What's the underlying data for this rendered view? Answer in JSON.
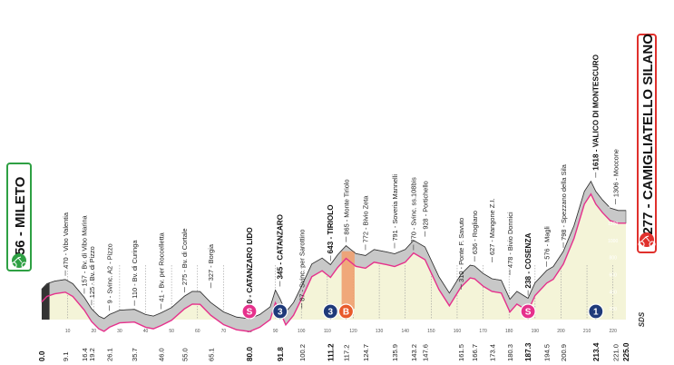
{
  "start": {
    "name": "MILETO",
    "altitude": "356",
    "color": "#2ea043"
  },
  "finish": {
    "name": "CAMIGLIATELLO SILANO",
    "altitude": "1277",
    "color": "#e0302c"
  },
  "logo": "SDS",
  "colors": {
    "pink": "#e6318c",
    "navy": "#1f3a7a",
    "orange": "#f0a070",
    "profile_fill": "#c8c8c8",
    "ground": "#f4f4d8"
  },
  "chart_data": {
    "type": "area",
    "x_unit": "km",
    "y_unit": "m",
    "xlim": [
      0,
      225
    ],
    "ylim": [
      0,
      1700
    ],
    "altitude_ticks": [
      "1400",
      "1200",
      "1000",
      "800",
      "600",
      "400",
      "200"
    ],
    "axis_ticks": [
      "10",
      "20",
      "30",
      "40",
      "50",
      "60",
      "70",
      "80",
      "90",
      "100",
      "110",
      "120",
      "130",
      "140",
      "150",
      "160",
      "170",
      "180",
      "190",
      "200",
      "210",
      "220"
    ],
    "profile": [
      [
        0,
        356
      ],
      [
        2,
        420
      ],
      [
        5,
        450
      ],
      [
        9.1,
        470
      ],
      [
        12,
        420
      ],
      [
        16.4,
        260
      ],
      [
        19.2,
        125
      ],
      [
        22,
        40
      ],
      [
        24,
        12
      ],
      [
        26.1,
        60
      ],
      [
        30,
        110
      ],
      [
        35.7,
        120
      ],
      [
        40,
        60
      ],
      [
        43,
        41
      ],
      [
        46,
        80
      ],
      [
        50,
        140
      ],
      [
        55,
        275
      ],
      [
        58,
        330
      ],
      [
        61,
        327
      ],
      [
        65.1,
        200
      ],
      [
        70,
        90
      ],
      [
        75,
        30
      ],
      [
        80,
        10
      ],
      [
        84,
        60
      ],
      [
        88,
        150
      ],
      [
        90,
        345
      ],
      [
        91.8,
        240
      ],
      [
        94,
        87
      ],
      [
        97,
        200
      ],
      [
        100.2,
        400
      ],
      [
        104,
        650
      ],
      [
        108,
        720
      ],
      [
        111.2,
        643
      ],
      [
        114,
        760
      ],
      [
        117.2,
        865
      ],
      [
        121,
        772
      ],
      [
        124.7,
        750
      ],
      [
        128,
        820
      ],
      [
        133,
        791
      ],
      [
        135.9,
        770
      ],
      [
        140,
        820
      ],
      [
        143.2,
        928
      ],
      [
        147.6,
        850
      ],
      [
        153,
        500
      ],
      [
        157,
        310
      ],
      [
        161.5,
        530
      ],
      [
        165,
        636
      ],
      [
        166.7,
        627
      ],
      [
        170,
        540
      ],
      [
        173.4,
        478
      ],
      [
        177,
        460
      ],
      [
        180.3,
        238
      ],
      [
        183,
        330
      ],
      [
        187.3,
        250
      ],
      [
        190,
        430
      ],
      [
        194.5,
        576
      ],
      [
        197,
        620
      ],
      [
        200.9,
        798
      ],
      [
        205,
        1100
      ],
      [
        209,
        1500
      ],
      [
        211.5,
        1618
      ],
      [
        213.4,
        1500
      ],
      [
        216,
        1400
      ],
      [
        219,
        1306
      ],
      [
        222,
        1277
      ],
      [
        225,
        1277
      ]
    ],
    "km_labels": [
      {
        "km": 0,
        "text": "0.0",
        "bold": true
      },
      {
        "km": 9.1,
        "text": "9.1"
      },
      {
        "km": 16.4,
        "text": "16.4"
      },
      {
        "km": 19.2,
        "text": "19.2"
      },
      {
        "km": 26.1,
        "text": "26.1"
      },
      {
        "km": 35.7,
        "text": "35.7"
      },
      {
        "km": 46.0,
        "text": "46.0"
      },
      {
        "km": 55.0,
        "text": "55.0"
      },
      {
        "km": 65.1,
        "text": "65.1"
      },
      {
        "km": 80.0,
        "text": "80.0",
        "bold": true
      },
      {
        "km": 91.8,
        "text": "91.8",
        "bold": true
      },
      {
        "km": 100.2,
        "text": "100.2"
      },
      {
        "km": 111.2,
        "text": "111.2",
        "bold": true
      },
      {
        "km": 117.2,
        "text": "117.2"
      },
      {
        "km": 124.7,
        "text": "124.7"
      },
      {
        "km": 135.9,
        "text": "135.9"
      },
      {
        "km": 143.2,
        "text": "143.2"
      },
      {
        "km": 147.6,
        "text": "147.6"
      },
      {
        "km": 161.5,
        "text": "161.5"
      },
      {
        "km": 166.7,
        "text": "166.7"
      },
      {
        "km": 173.4,
        "text": "173.4"
      },
      {
        "km": 180.3,
        "text": "180.3"
      },
      {
        "km": 187.3,
        "text": "187.3",
        "bold": true
      },
      {
        "km": 194.5,
        "text": "194.5"
      },
      {
        "km": 200.9,
        "text": "200.9"
      },
      {
        "km": 213.4,
        "text": "213.4",
        "bold": true
      },
      {
        "km": 221.0,
        "text": "221.0"
      },
      {
        "km": 225.0,
        "text": "225.0",
        "bold": true
      }
    ],
    "waypoints": [
      {
        "km": 9.1,
        "alt": 470,
        "text": "470 - Vibo Valentia"
      },
      {
        "km": 16.4,
        "alt": 260,
        "text": "157 - Bv. di Vibo Marina"
      },
      {
        "km": 19.2,
        "alt": 125,
        "text": "125 - Bv. di Pizzo"
      },
      {
        "km": 26.1,
        "alt": 60,
        "text": "9 - Svinc. A2 - Pizzo"
      },
      {
        "km": 35.7,
        "alt": 120,
        "text": "110 - Bv. di Curinga"
      },
      {
        "km": 46.0,
        "alt": 80,
        "text": "41 - Bv. per Roccelletta"
      },
      {
        "km": 55.0,
        "alt": 275,
        "text": "275 - Bv. di Cortale"
      },
      {
        "km": 65.1,
        "alt": 327,
        "text": "327 - Borgia"
      },
      {
        "km": 80.0,
        "alt": 10,
        "text": "10 - CATANZARO LIDO",
        "bold": true
      },
      {
        "km": 91.8,
        "alt": 345,
        "text": "345 - CATANZARO",
        "bold": true
      },
      {
        "km": 100.2,
        "alt": 87,
        "text": "87 - Svinc. per Sarottino"
      },
      {
        "km": 111.2,
        "alt": 643,
        "text": "643 - TIRIOLO",
        "bold": true
      },
      {
        "km": 117.2,
        "alt": 865,
        "text": "865 - Monte Tiriolo"
      },
      {
        "km": 124.7,
        "alt": 772,
        "text": "772 - Bivio Zeta"
      },
      {
        "km": 135.9,
        "alt": 791,
        "text": "791 - Soveria Mannelli"
      },
      {
        "km": 143.2,
        "alt": 770,
        "text": "770 - Svinc. ss.108bis"
      },
      {
        "km": 147.6,
        "alt": 928,
        "text": "928 - Portichello"
      },
      {
        "km": 161.5,
        "alt": 310,
        "text": "310 - Ponte F. Savuto"
      },
      {
        "km": 166.7,
        "alt": 636,
        "text": "636 - Rogliano"
      },
      {
        "km": 173.4,
        "alt": 627,
        "text": "627 - Mangone Z.I."
      },
      {
        "km": 180.3,
        "alt": 478,
        "text": "478 - Bivio Donnici"
      },
      {
        "km": 187.3,
        "alt": 238,
        "text": "238 - COSENZA",
        "bold": true
      },
      {
        "km": 194.5,
        "alt": 576,
        "text": "576 - Magli"
      },
      {
        "km": 200.9,
        "alt": 798,
        "text": "798 - Spezzano della Sila"
      },
      {
        "km": 213.4,
        "alt": 1618,
        "text": "1618 - VALICO DI MONTESCURO",
        "bold": true
      },
      {
        "km": 221.0,
        "alt": 1306,
        "text": "1306 - Moccone"
      }
    ],
    "markers": [
      {
        "km": 80,
        "type": "sprint",
        "label": "S",
        "color": "#e6318c"
      },
      {
        "km": 91.8,
        "type": "climb",
        "label": "3",
        "color": "#1f3a7a"
      },
      {
        "km": 111.2,
        "type": "climb",
        "label": "3",
        "color": "#1f3a7a"
      },
      {
        "km": 117.2,
        "type": "bonus",
        "label": "B",
        "color": "#e85a2a"
      },
      {
        "km": 187.3,
        "type": "sprint",
        "label": "S",
        "color": "#e6318c"
      },
      {
        "km": 213.4,
        "type": "climb",
        "label": "1",
        "color": "#1f3a7a"
      }
    ],
    "highlight": {
      "km_start": 115.5,
      "km_end": 120.5,
      "color": "#f0a070"
    }
  }
}
